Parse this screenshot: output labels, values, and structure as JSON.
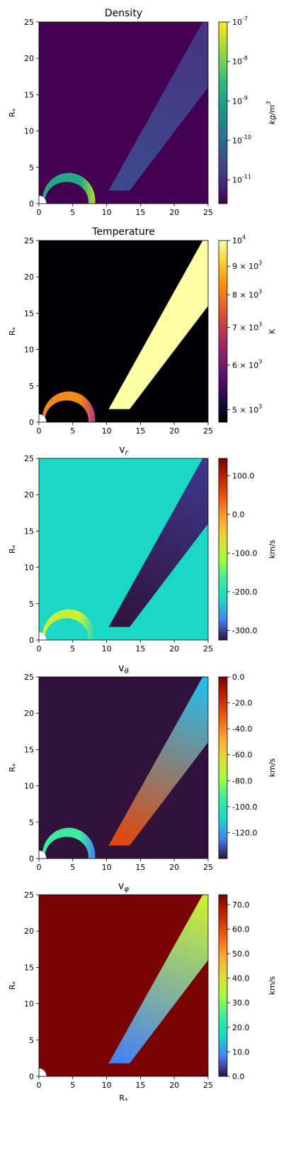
{
  "x_label": "R*",
  "chart_data": [
    {
      "type": "heatmap",
      "title": "Density",
      "title_html": "Density",
      "colormap": "viridis",
      "background_color": "#440154",
      "disk_fill": "#22a884",
      "disk_tip_color": "#b5de2b",
      "wind_colors": [
        "#3b4a8b",
        "#463480"
      ],
      "ylabel": "R*",
      "xlim": [
        0,
        25
      ],
      "ylim": [
        0,
        25
      ],
      "xticks": [
        0,
        5,
        10,
        15,
        20,
        25
      ],
      "yticks": [
        0,
        5,
        10,
        15,
        20,
        25
      ],
      "colorbar": {
        "label": "kg/m^3",
        "scale": "log",
        "range": [
          2.5e-12,
          1e-07
        ],
        "ticks": [
          {
            "value": 1e-07,
            "label": "10^-7"
          },
          {
            "value": 1e-08,
            "label": "10^-8"
          },
          {
            "value": 1e-09,
            "label": "10^-9"
          },
          {
            "value": 1e-10,
            "label": "10^-10"
          },
          {
            "value": 1e-11,
            "label": "10^-11"
          }
        ]
      }
    },
    {
      "type": "heatmap",
      "title": "Temperature",
      "colormap": "inferno",
      "background_color": "#000004",
      "disk_fill": "#f48a1a",
      "disk_tip_color": "#b73779",
      "wind_colors": [
        "#fcffa4",
        "#fcffa4"
      ],
      "ylabel": "R*",
      "xlim": [
        0,
        25
      ],
      "ylim": [
        0,
        25
      ],
      "xticks": [
        0,
        5,
        10,
        15,
        20,
        25
      ],
      "yticks": [
        0,
        5,
        10,
        15,
        20,
        25
      ],
      "colorbar": {
        "label": "K",
        "scale": "log",
        "range": [
          4750,
          10000
        ],
        "ticks": [
          {
            "value": 10000,
            "label": "10^4"
          },
          {
            "value": 9000,
            "label": "9 × 10^3"
          },
          {
            "value": 8000,
            "label": "8 × 10^3"
          },
          {
            "value": 7000,
            "label": "7 × 10^3"
          },
          {
            "value": 6000,
            "label": "6 × 10^3"
          },
          {
            "value": 5000,
            "label": "5 × 10^3"
          }
        ]
      }
    },
    {
      "type": "heatmap",
      "title": "v_r",
      "colormap": "turbo_r",
      "background_color": "#1ad8c4",
      "disk_fill": "#c8ef34",
      "disk_tip_color": "#1ad8c4",
      "wind_colors": [
        "#30123b",
        "#3e388b"
      ],
      "ylabel": "R*",
      "xlim": [
        0,
        25
      ],
      "ylim": [
        0,
        25
      ],
      "xticks": [
        0,
        5,
        10,
        15,
        20,
        25
      ],
      "yticks": [
        0,
        5,
        10,
        15,
        20,
        25
      ],
      "colorbar": {
        "label": "km/s",
        "scale": "linear",
        "range": [
          -325,
          145
        ],
        "ticks": [
          {
            "value": 100,
            "label": "100.0"
          },
          {
            "value": 0,
            "label": "0.0"
          },
          {
            "value": -100,
            "label": "-100.0"
          },
          {
            "value": -200,
            "label": "-200.0"
          },
          {
            "value": -300,
            "label": "-300.0"
          }
        ]
      }
    },
    {
      "type": "heatmap",
      "title": "v_θ",
      "colormap": "turbo_r",
      "background_color": "#30123b",
      "disk_fill": "#3dec9f",
      "disk_tip_color": "#4680f6",
      "wind_colors": [
        "#e4460a",
        "#28bceb"
      ],
      "ylabel": "R*",
      "xlim": [
        0,
        25
      ],
      "ylim": [
        0,
        25
      ],
      "xticks": [
        0,
        5,
        10,
        15,
        20,
        25
      ],
      "yticks": [
        0,
        5,
        10,
        15,
        20,
        25
      ],
      "colorbar": {
        "label": "km/s",
        "scale": "linear",
        "range": [
          -140,
          0
        ],
        "ticks": [
          {
            "value": 0,
            "label": "0.0"
          },
          {
            "value": -20,
            "label": "-20.0"
          },
          {
            "value": -40,
            "label": "-40.0"
          },
          {
            "value": -60,
            "label": "-60.0"
          },
          {
            "value": -80,
            "label": "-80.0"
          },
          {
            "value": -100,
            "label": "-100.0"
          },
          {
            "value": -120,
            "label": "-120.0"
          }
        ]
      }
    },
    {
      "type": "heatmap",
      "title": "v_φ",
      "colormap": "turbo_r",
      "background_color": "#7a0403",
      "disk_fill": "#7a0403",
      "disk_tip_color": "#7a0403",
      "wind_colors": [
        "#4680f6",
        "#c8ef34"
      ],
      "ylabel": "R*",
      "xlabel": "R*",
      "xlim": [
        0,
        25
      ],
      "ylim": [
        0,
        25
      ],
      "xticks": [
        0,
        5,
        10,
        15,
        20,
        25
      ],
      "yticks": [
        0,
        5,
        10,
        15,
        20,
        25
      ],
      "colorbar": {
        "label": "km/s",
        "scale": "linear",
        "range": [
          0,
          74
        ],
        "ticks": [
          {
            "value": 70,
            "label": "70.0"
          },
          {
            "value": 60,
            "label": "60.0"
          },
          {
            "value": 50,
            "label": "50.0"
          },
          {
            "value": 40,
            "label": "40.0"
          },
          {
            "value": 30,
            "label": "30.0"
          },
          {
            "value": 20,
            "label": "20.0"
          },
          {
            "value": 10,
            "label": "10.0"
          },
          {
            "value": 0,
            "label": "0.0"
          }
        ]
      }
    }
  ],
  "colormaps": {
    "viridis": [
      "#440154",
      "#482878",
      "#3e4989",
      "#31688e",
      "#26828e",
      "#1f9e89",
      "#35b779",
      "#6ece58",
      "#b5de2b",
      "#fde725"
    ],
    "inferno": [
      "#000004",
      "#1b0c41",
      "#4a0c6b",
      "#781c6d",
      "#a52c60",
      "#cf4446",
      "#ed6925",
      "#fb9b06",
      "#f7d13d",
      "#fcffa4"
    ],
    "turbo_r": [
      "#30123b",
      "#4680f6",
      "#1ad8c4",
      "#3dec9f",
      "#a4fc3c",
      "#e1dd37",
      "#fea632",
      "#f05b12",
      "#c42503",
      "#7a0403"
    ]
  }
}
